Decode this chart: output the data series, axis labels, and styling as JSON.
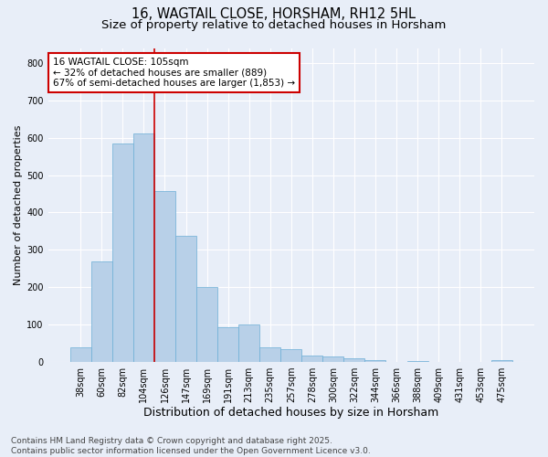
{
  "title1": "16, WAGTAIL CLOSE, HORSHAM, RH12 5HL",
  "title2": "Size of property relative to detached houses in Horsham",
  "xlabel": "Distribution of detached houses by size in Horsham",
  "ylabel": "Number of detached properties",
  "categories": [
    "38sqm",
    "60sqm",
    "82sqm",
    "104sqm",
    "126sqm",
    "147sqm",
    "169sqm",
    "191sqm",
    "213sqm",
    "235sqm",
    "257sqm",
    "278sqm",
    "300sqm",
    "322sqm",
    "344sqm",
    "366sqm",
    "388sqm",
    "409sqm",
    "431sqm",
    "453sqm",
    "475sqm"
  ],
  "values": [
    38,
    268,
    585,
    612,
    457,
    338,
    200,
    93,
    101,
    38,
    35,
    17,
    15,
    10,
    5,
    0,
    3,
    0,
    0,
    0,
    5
  ],
  "bar_color": "#b8d0e8",
  "bar_edge_color": "#6baed6",
  "background_color": "#e8eef8",
  "grid_color": "#ffffff",
  "vline_color": "#cc0000",
  "vline_index": 3,
  "annotation_text": "16 WAGTAIL CLOSE: 105sqm\n← 32% of detached houses are smaller (889)\n67% of semi-detached houses are larger (1,853) →",
  "annotation_box_color": "#ffffff",
  "annotation_box_edge": "#cc0000",
  "ylim": [
    0,
    840
  ],
  "yticks": [
    0,
    100,
    200,
    300,
    400,
    500,
    600,
    700,
    800
  ],
  "footer_text": "Contains HM Land Registry data © Crown copyright and database right 2025.\nContains public sector information licensed under the Open Government Licence v3.0.",
  "title_fontsize": 10.5,
  "subtitle_fontsize": 9.5,
  "annotation_fontsize": 7.5,
  "footer_fontsize": 6.5,
  "ylabel_fontsize": 8,
  "xlabel_fontsize": 9,
  "tick_fontsize": 7
}
